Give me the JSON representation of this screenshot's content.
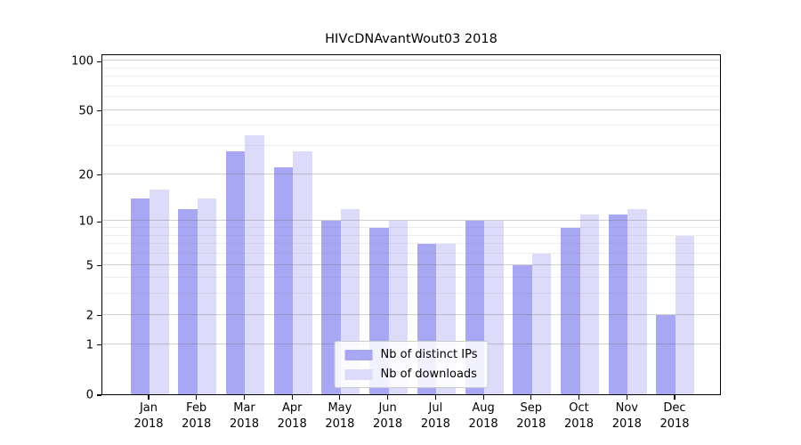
{
  "title": "HIVcDNAvantWout03 2018",
  "chart_data": {
    "type": "bar",
    "title": "HIVcDNAvantWout03 2018",
    "categories": [
      "Jan 2018",
      "Feb 2018",
      "Mar 2018",
      "Apr 2018",
      "May 2018",
      "Jun 2018",
      "Jul 2018",
      "Aug 2018",
      "Sep 2018",
      "Oct 2018",
      "Nov 2018",
      "Dec 2018"
    ],
    "series": [
      {
        "name": "Nb of distinct IPs",
        "color": "#a7a7f3",
        "values": [
          14,
          12,
          28,
          22,
          10,
          9,
          7,
          10,
          5,
          9,
          11,
          2
        ]
      },
      {
        "name": "Nb of downloads",
        "color": "#dcdcfa",
        "values": [
          16,
          14,
          35,
          28,
          12,
          10,
          7,
          10,
          6,
          11,
          12,
          8
        ]
      }
    ],
    "xlabel": "",
    "ylabel": "",
    "yscale": "log1p",
    "ylim": [
      0,
      110
    ],
    "y_ticks": [
      0,
      1,
      2,
      5,
      10,
      20,
      50,
      100
    ],
    "y_minor_ticks": [
      3,
      4,
      6,
      7,
      8,
      9,
      30,
      40,
      60,
      70,
      80,
      90
    ],
    "grid": "major and minor horizontal gridlines",
    "legend_position": "lower center"
  },
  "colors": {
    "bar_distinct_ips": "#a7a7f3",
    "bar_downloads": "#dcdcfa",
    "background": "#ffffff",
    "axis": "#000000",
    "major_grid": "#d7d7d7",
    "minor_grid": "#ededed"
  }
}
